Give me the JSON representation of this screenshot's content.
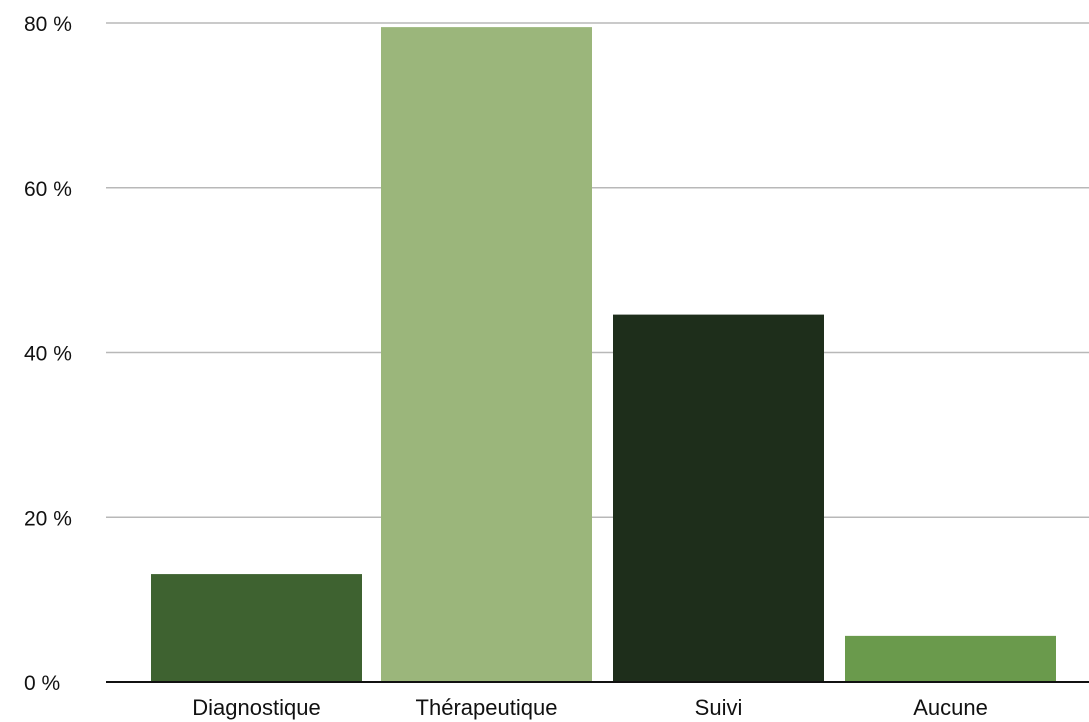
{
  "chart_data": {
    "type": "bar",
    "categories": [
      "Diagnostique",
      "Thérapeutique",
      "Suivi",
      "Aucune"
    ],
    "values": [
      13.1,
      79.5,
      44.6,
      5.6
    ],
    "colors": [
      "#3e6230",
      "#9bb67b",
      "#1e2e1b",
      "#6a9a4c"
    ],
    "ylim": [
      0,
      80
    ],
    "yticks": [
      0,
      20,
      40,
      60,
      80
    ],
    "ytick_labels": [
      "0 %",
      "20 %",
      "40 %",
      "60 %",
      "80 %"
    ],
    "grid": true,
    "title": "",
    "xlabel": "",
    "ylabel": ""
  }
}
